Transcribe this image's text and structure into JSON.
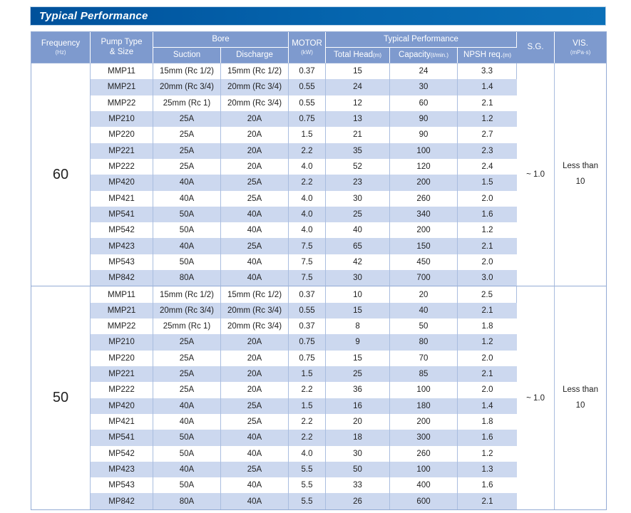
{
  "title_bar": {
    "label": "Typical Performance"
  },
  "colors": {
    "title_bar_dark": "#00519b",
    "title_bar_light": "#0b70b8",
    "header_bg": "#7e9ace",
    "row_stripe": "#ccd8ef",
    "cell_border": "#a9bddf",
    "frame_border": "#93abd5",
    "header_text": "#ffffff",
    "body_text": "#1f1f1f"
  },
  "table": {
    "headers": {
      "frequency": {
        "line1": "Frequency",
        "line2": "(Hz)"
      },
      "pump_type": {
        "line1": "Pump Type",
        "line2": "& Size"
      },
      "bore": "Bore",
      "suction": "Suction",
      "discharge": "Discharge",
      "motor": {
        "line1": "MOTOR",
        "line2": "(kW)"
      },
      "typical_performance": "Typical Performance",
      "total_head": {
        "main": "Total Head",
        "unit": "(m)"
      },
      "capacity": {
        "main": "Capacity",
        "unit": "(ℓ/min.)"
      },
      "npsh": {
        "main": "NPSH req.",
        "unit": "(m)"
      },
      "sg": "S.G.",
      "vis": {
        "line1": "VIS.",
        "line2": "(mPa·s)"
      }
    },
    "cell_names": [
      "cell-pump-model",
      "cell-bore-suction",
      "cell-bore-discharge",
      "cell-motor-kw",
      "cell-total-head",
      "cell-capacity",
      "cell-npsh-req"
    ],
    "groups": [
      {
        "frequency": "60",
        "sg": "~ 1.0",
        "vis": {
          "line1": "Less than",
          "line2": "10"
        },
        "rows": [
          [
            "MMP11",
            "15mm (Rc 1/2)",
            "15mm (Rc 1/2)",
            "0.37",
            "15",
            "24",
            "3.3"
          ],
          [
            "MMP21",
            "20mm (Rc 3/4)",
            "20mm (Rc 3/4)",
            "0.55",
            "24",
            "30",
            "1.4"
          ],
          [
            "MMP22",
            "25mm (Rc 1)",
            "20mm (Rc 3/4)",
            "0.55",
            "12",
            "60",
            "2.1"
          ],
          [
            "MP210",
            "25A",
            "20A",
            "0.75",
            "13",
            "90",
            "1.2"
          ],
          [
            "MP220",
            "25A",
            "20A",
            "1.5",
            "21",
            "90",
            "2.7"
          ],
          [
            "MP221",
            "25A",
            "20A",
            "2.2",
            "35",
            "100",
            "2.3"
          ],
          [
            "MP222",
            "25A",
            "20A",
            "4.0",
            "52",
            "120",
            "2.4"
          ],
          [
            "MP420",
            "40A",
            "25A",
            "2.2",
            "23",
            "200",
            "1.5"
          ],
          [
            "MP421",
            "40A",
            "25A",
            "4.0",
            "30",
            "260",
            "2.0"
          ],
          [
            "MP541",
            "50A",
            "40A",
            "4.0",
            "25",
            "340",
            "1.6"
          ],
          [
            "MP542",
            "50A",
            "40A",
            "4.0",
            "40",
            "200",
            "1.2"
          ],
          [
            "MP423",
            "40A",
            "25A",
            "7.5",
            "65",
            "150",
            "2.1"
          ],
          [
            "MP543",
            "50A",
            "40A",
            "7.5",
            "42",
            "450",
            "2.0"
          ],
          [
            "MP842",
            "80A",
            "40A",
            "7.5",
            "30",
            "700",
            "3.0"
          ]
        ]
      },
      {
        "frequency": "50",
        "sg": "~ 1.0",
        "vis": {
          "line1": "Less than",
          "line2": "10"
        },
        "rows": [
          [
            "MMP11",
            "15mm (Rc 1/2)",
            "15mm (Rc 1/2)",
            "0.37",
            "10",
            "20",
            "2.5"
          ],
          [
            "MMP21",
            "20mm (Rc 3/4)",
            "20mm (Rc 3/4)",
            "0.55",
            "15",
            "40",
            "2.1"
          ],
          [
            "MMP22",
            "25mm (Rc 1)",
            "20mm (Rc 3/4)",
            "0.37",
            "8",
            "50",
            "1.8"
          ],
          [
            "MP210",
            "25A",
            "20A",
            "0.75",
            "9",
            "80",
            "1.2"
          ],
          [
            "MP220",
            "25A",
            "20A",
            "0.75",
            "15",
            "70",
            "2.0"
          ],
          [
            "MP221",
            "25A",
            "20A",
            "1.5",
            "25",
            "85",
            "2.1"
          ],
          [
            "MP222",
            "25A",
            "20A",
            "2.2",
            "36",
            "100",
            "2.0"
          ],
          [
            "MP420",
            "40A",
            "25A",
            "1.5",
            "16",
            "180",
            "1.4"
          ],
          [
            "MP421",
            "40A",
            "25A",
            "2.2",
            "20",
            "200",
            "1.8"
          ],
          [
            "MP541",
            "50A",
            "40A",
            "2.2",
            "18",
            "300",
            "1.6"
          ],
          [
            "MP542",
            "50A",
            "40A",
            "4.0",
            "30",
            "260",
            "1.2"
          ],
          [
            "MP423",
            "40A",
            "25A",
            "5.5",
            "50",
            "100",
            "1.3"
          ],
          [
            "MP543",
            "50A",
            "40A",
            "5.5",
            "33",
            "400",
            "1.6"
          ],
          [
            "MP842",
            "80A",
            "40A",
            "5.5",
            "26",
            "600",
            "2.1"
          ]
        ]
      }
    ]
  }
}
